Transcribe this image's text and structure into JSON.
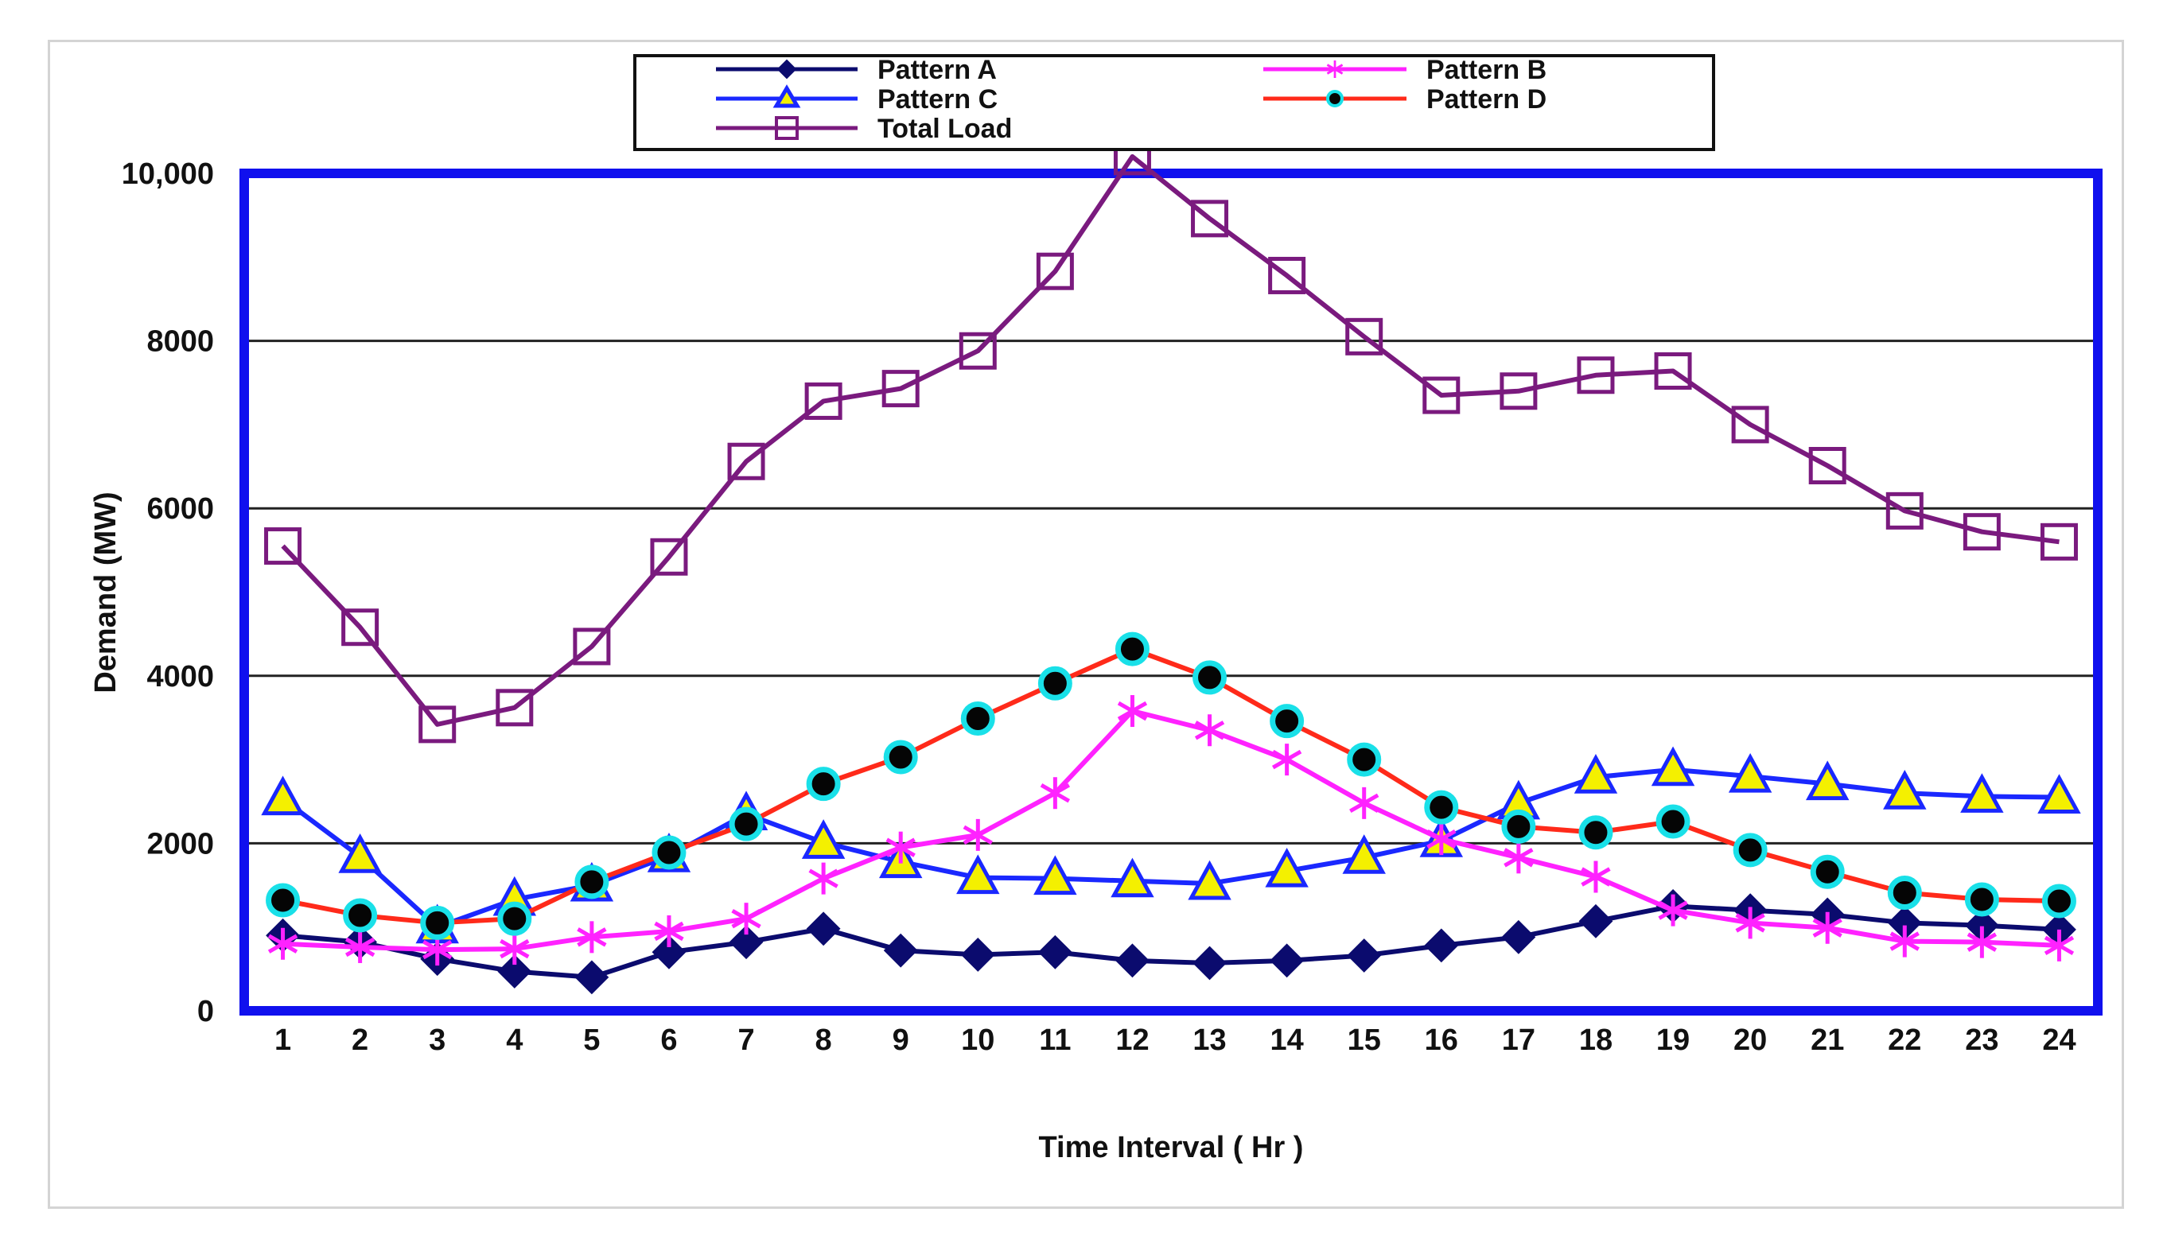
{
  "chart_data": {
    "type": "line",
    "title": "",
    "xlabel": "Time Interval ( Hr )",
    "ylabel": "Demand (MW)",
    "x": [
      1,
      2,
      3,
      4,
      5,
      6,
      7,
      8,
      9,
      10,
      11,
      12,
      13,
      14,
      15,
      16,
      17,
      18,
      19,
      20,
      21,
      22,
      23,
      24
    ],
    "xtick_labels": [
      "1",
      "2",
      "3",
      "4",
      "5",
      "6",
      "7",
      "8",
      "9",
      "10",
      "11",
      "12",
      "13",
      "14",
      "15",
      "16",
      "17",
      "18",
      "19",
      "20",
      "21",
      "22",
      "23",
      "24"
    ],
    "ylim": [
      0,
      10000
    ],
    "yticks": [
      0,
      2000,
      4000,
      6000,
      8000,
      10000
    ],
    "ytick_labels": [
      "0",
      "2000",
      "4000",
      "6000",
      "8000",
      "10,000"
    ],
    "grid": true,
    "legend_position": "top",
    "series": [
      {
        "name": "Pattern A",
        "color": "#0b0b6e",
        "marker": "diamond",
        "values": [
          900,
          820,
          620,
          470,
          400,
          700,
          820,
          980,
          720,
          670,
          700,
          600,
          570,
          600,
          660,
          780,
          880,
          1070,
          1250,
          1200,
          1150,
          1050,
          1020,
          970
        ]
      },
      {
        "name": "Pattern B",
        "color": "#ff22ff",
        "marker": "asterisk",
        "values": [
          800,
          760,
          730,
          740,
          880,
          950,
          1100,
          1580,
          1950,
          2100,
          2600,
          3580,
          3350,
          3000,
          2480,
          2050,
          1830,
          1600,
          1200,
          1050,
          990,
          830,
          820,
          780
        ]
      },
      {
        "name": "Pattern C",
        "color": "#1a28ff",
        "marker": "triangle",
        "values": [
          2530,
          1840,
          1000,
          1330,
          1500,
          1850,
          2350,
          2010,
          1780,
          1590,
          1580,
          1550,
          1520,
          1670,
          1830,
          2030,
          2480,
          2790,
          2880,
          2800,
          2710,
          2600,
          2560,
          2550
        ]
      },
      {
        "name": "Pattern D",
        "color": "#ff2a1a",
        "marker": "circle",
        "values": [
          1320,
          1140,
          1050,
          1100,
          1540,
          1890,
          2230,
          2710,
          3030,
          3490,
          3910,
          4320,
          3980,
          3460,
          3000,
          2430,
          2200,
          2130,
          2260,
          1920,
          1660,
          1410,
          1330,
          1310
        ]
      },
      {
        "name": "Total Load",
        "color": "#7a1a7e",
        "marker": "square",
        "values": [
          5550,
          4580,
          3420,
          3620,
          4350,
          5420,
          6560,
          7280,
          7430,
          7880,
          8830,
          10200,
          9460,
          8780,
          8050,
          7350,
          7400,
          7590,
          7640,
          7000,
          6510,
          5970,
          5720,
          5600
        ]
      }
    ]
  }
}
